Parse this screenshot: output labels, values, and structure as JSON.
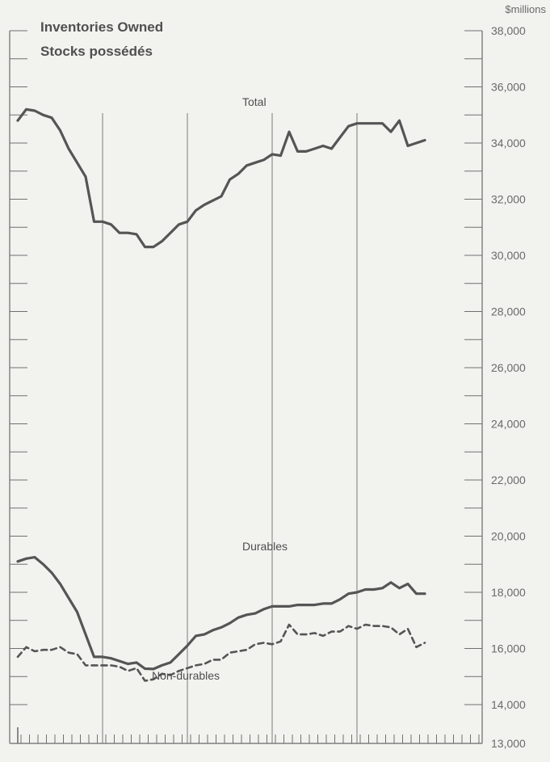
{
  "chart_data": {
    "type": "line",
    "title_lines": [
      "Inventories Owned",
      "Stocks possédés"
    ],
    "unit_label": "$millions",
    "y_ticks": [
      13000,
      14000,
      16000,
      18000,
      20000,
      22000,
      24000,
      26000,
      28000,
      30000,
      32000,
      34000,
      36000,
      38000
    ],
    "y_tick_labels": [
      "13,000",
      "14,000",
      "16,000",
      "18,000",
      "20,000",
      "22,000",
      "24,000",
      "26,000",
      "28,000",
      "30,000",
      "32,000",
      "34,000",
      "36,000",
      "38,000"
    ],
    "ylim": [
      13000,
      38000
    ],
    "x_period_count": 48,
    "x_gridlines_at_period": [
      10,
      20,
      30,
      40
    ],
    "grid": "vertical lines only",
    "series": [
      {
        "name": "Total",
        "style": "solid",
        "color": "#555555",
        "values": [
          34800,
          35200,
          35150,
          35000,
          34900,
          34450,
          33800,
          33300,
          32800,
          31200,
          31200,
          31100,
          30800,
          30800,
          30750,
          30300,
          30300,
          30500,
          30800,
          31100,
          31200,
          31600,
          31800,
          31950,
          32100,
          32700,
          32900,
          33200,
          33300,
          33400,
          33600,
          33550,
          34400,
          33700,
          33700,
          33800,
          33900,
          33800,
          34200,
          34600,
          34700,
          34700,
          34700,
          34700,
          34400,
          34800,
          33900,
          34000,
          34100
        ]
      },
      {
        "name": "Durables",
        "style": "solid",
        "color": "#555555",
        "values": [
          19100,
          19200,
          19250,
          19000,
          18700,
          18300,
          17800,
          17300,
          16500,
          15700,
          15700,
          15650,
          15550,
          15450,
          15500,
          15280,
          15270,
          15400,
          15500,
          15800,
          16100,
          16450,
          16500,
          16650,
          16750,
          16900,
          17100,
          17200,
          17250,
          17400,
          17500,
          17500,
          17500,
          17550,
          17550,
          17550,
          17600,
          17600,
          17750,
          17950,
          18000,
          18100,
          18100,
          18150,
          18350,
          18150,
          18300,
          17950,
          17950
        ]
      },
      {
        "name": "Non-durables",
        "style": "dashed",
        "color": "#555555",
        "values": [
          15700,
          16050,
          15900,
          15950,
          15950,
          16050,
          15850,
          15800,
          15400,
          15400,
          15400,
          15400,
          15350,
          15200,
          15300,
          14850,
          14900,
          15100,
          15050,
          15200,
          15300,
          15400,
          15450,
          15600,
          15600,
          15850,
          15900,
          15950,
          16150,
          16200,
          16150,
          16250,
          16850,
          16500,
          16500,
          16550,
          16450,
          16600,
          16600,
          16800,
          16700,
          16850,
          16800,
          16800,
          16750,
          16500,
          16700,
          16050,
          16200
        ]
      }
    ]
  }
}
